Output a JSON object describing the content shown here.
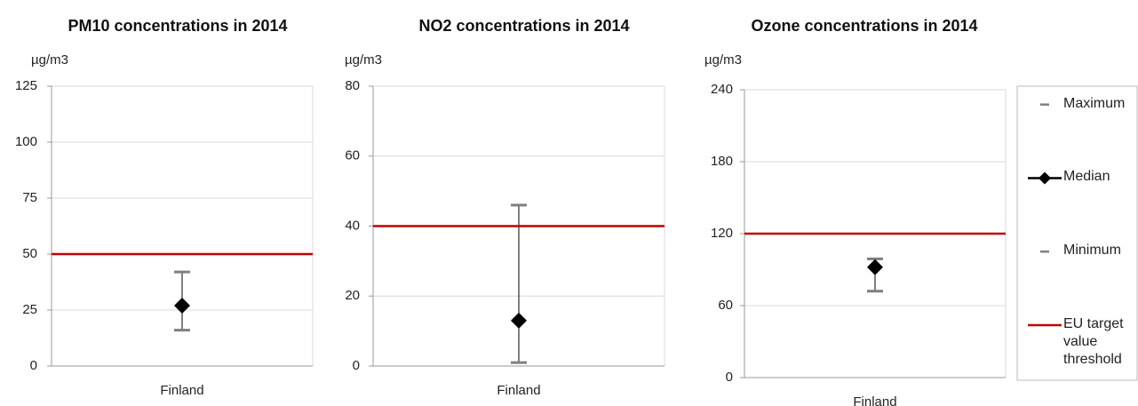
{
  "chart_data": [
    {
      "type": "range",
      "title": "PM10 concentrations in 2014",
      "y_label": "µg/m3",
      "categories": [
        "Finland"
      ],
      "series": [
        {
          "color": "#7f7f7f",
          "marker": "dash",
          "values": [
            42
          ]
        },
        {
          "color": "#000000",
          "marker": "diamond",
          "values": [
            27
          ]
        },
        {
          "color": "#7f7f7f",
          "marker": "dash",
          "values": [
            16
          ]
        },
        {
          "color": "#c00000",
          "marker": "hline",
          "values": [
            50
          ]
        }
      ],
      "ylim": [
        0,
        125
      ],
      "yticks": [
        0,
        25,
        50,
        75,
        100,
        125
      ],
      "grid": true
    },
    {
      "type": "range",
      "title": "NO2 concentrations in 2014",
      "y_label": "µg/m3",
      "categories": [
        "Finland"
      ],
      "series": [
        {
          "color": "#7f7f7f",
          "marker": "dash",
          "values": [
            46
          ]
        },
        {
          "color": "#000000",
          "marker": "diamond",
          "values": [
            13
          ]
        },
        {
          "color": "#7f7f7f",
          "marker": "dash",
          "values": [
            1
          ]
        },
        {
          "color": "#c00000",
          "marker": "hline",
          "values": [
            40
          ]
        }
      ],
      "ylim": [
        0,
        80
      ],
      "yticks": [
        0,
        20,
        40,
        60,
        80
      ],
      "grid": true
    },
    {
      "type": "range",
      "title": "Ozone concentrations in 2014",
      "y_label": "µg/m3",
      "categories": [
        "Finland"
      ],
      "series": [
        {
          "name": "Maximum",
          "color": "#7f7f7f",
          "marker": "dash",
          "values": [
            99
          ]
        },
        {
          "name": "Median",
          "color": "#000000",
          "marker": "diamond",
          "values": [
            92
          ]
        },
        {
          "name": "Minimum",
          "color": "#7f7f7f",
          "marker": "dash",
          "values": [
            72
          ]
        },
        {
          "name": "EU target value threshold",
          "color": "#c00000",
          "marker": "hline",
          "values": [
            120
          ]
        }
      ],
      "ylim": [
        0,
        240
      ],
      "yticks": [
        0,
        60,
        120,
        180,
        240
      ],
      "grid": true,
      "legend": "right"
    }
  ]
}
